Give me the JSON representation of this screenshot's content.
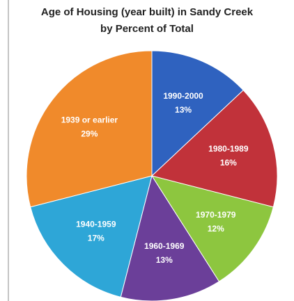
{
  "chart_data": {
    "type": "pie",
    "title": [
      "Age of Housing (year built) in Sandy Creek",
      "by Percent of Total"
    ],
    "categories": [
      "1990-2000",
      "1980-1989",
      "1970-1979",
      "1960-1969",
      "1940-1959",
      "1939 or earlier"
    ],
    "values": [
      13,
      16,
      12,
      13,
      17,
      29
    ],
    "value_labels": [
      "13%",
      "16%",
      "12%",
      "13%",
      "17%",
      "29%"
    ],
    "colors": [
      "#2f62bf",
      "#c1323a",
      "#8dc63f",
      "#6b3f99",
      "#2ea6d7",
      "#f08a2b"
    ]
  }
}
